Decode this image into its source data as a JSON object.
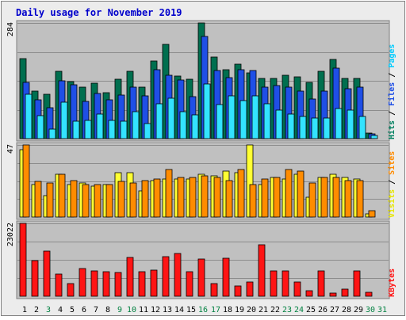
{
  "title": "Daily usage for November 2019",
  "colors": {
    "background": "#ececec",
    "panel": "#c0c0c0",
    "title": "#0000cc",
    "hits": "#006f4f",
    "files": "#1f4fe6",
    "pages": "#33e3ff",
    "visits": "#ffff33",
    "sites": "#ff8c00",
    "kbytes": "#ff1414",
    "weekend_day": "#008040",
    "weekday": "#000000"
  },
  "chart_data": [
    {
      "type": "bar",
      "max_label": "284",
      "ylim": [
        0,
        284
      ],
      "legend": [
        {
          "label": "Pages",
          "color": "#00ccff"
        },
        {
          "label": " / ",
          "color": "#000000"
        },
        {
          "label": "Files",
          "color": "#1f4fe6"
        },
        {
          "label": " / ",
          "color": "#000000"
        },
        {
          "label": "Hits",
          "color": "#008060"
        }
      ],
      "categories": [
        "1",
        "2",
        "3",
        "4",
        "5",
        "6",
        "7",
        "8",
        "9",
        "10",
        "11",
        "12",
        "13",
        "14",
        "15",
        "16",
        "17",
        "18",
        "19",
        "20",
        "21",
        "22",
        "23",
        "24",
        "25",
        "26",
        "27",
        "28",
        "29",
        "30",
        "31"
      ],
      "series": [
        {
          "name": "Hits",
          "values": [
            197,
            117,
            108,
            165,
            140,
            126,
            136,
            113,
            145,
            165,
            127,
            190,
            232,
            153,
            145,
            284,
            200,
            170,
            182,
            162,
            147,
            148,
            155,
            151,
            139,
            166,
            194,
            147,
            147,
            14,
            0
          ]
        },
        {
          "name": "Files",
          "values": [
            139,
            95,
            76,
            142,
            133,
            91,
            110,
            95,
            107,
            127,
            106,
            169,
            155,
            144,
            104,
            250,
            168,
            150,
            169,
            167,
            127,
            130,
            126,
            116,
            97,
            117,
            174,
            123,
            127,
            11,
            0
          ]
        },
        {
          "name": "Pages",
          "values": [
            109,
            56,
            23,
            90,
            42,
            45,
            61,
            45,
            42,
            66,
            36,
            86,
            100,
            67,
            58,
            135,
            84,
            105,
            93,
            105,
            85,
            70,
            60,
            55,
            50,
            50,
            73,
            70,
            55,
            8,
            0
          ]
        }
      ]
    },
    {
      "type": "bar",
      "max_label": "47",
      "ylim": [
        0,
        47
      ],
      "legend": [
        {
          "label": "Sites",
          "color": "#ff8c00"
        },
        {
          "label": " / ",
          "color": "#000000"
        },
        {
          "label": "Visits",
          "color": "#e6e600"
        }
      ],
      "categories": [
        "1",
        "2",
        "3",
        "4",
        "5",
        "6",
        "7",
        "8",
        "9",
        "10",
        "11",
        "12",
        "13",
        "14",
        "15",
        "16",
        "17",
        "18",
        "19",
        "20",
        "21",
        "22",
        "23",
        "24",
        "25",
        "26",
        "27",
        "28",
        "29",
        "30",
        "31"
      ],
      "series": [
        {
          "name": "Visits",
          "values": [
            44,
            21,
            14,
            28,
            21,
            22,
            20,
            21,
            29,
            29,
            17,
            24,
            25,
            25,
            25,
            28,
            27,
            30,
            29,
            47,
            21,
            26,
            25,
            28,
            13,
            26,
            28,
            26,
            25,
            2,
            0
          ]
        },
        {
          "name": "Sites",
          "values": [
            47,
            23,
            22,
            28,
            24,
            21,
            21,
            21,
            23,
            22,
            24,
            25,
            31,
            26,
            26,
            27,
            26,
            24,
            31,
            21,
            25,
            26,
            31,
            30,
            22,
            26,
            26,
            24,
            24,
            4,
            0
          ]
        }
      ]
    },
    {
      "type": "bar",
      "max_label": "23022",
      "ylim": [
        0,
        23022
      ],
      "legend": [
        {
          "label": "KBytes",
          "color": "#ff1414"
        }
      ],
      "categories": [
        "1",
        "2",
        "3",
        "4",
        "5",
        "6",
        "7",
        "8",
        "9",
        "10",
        "11",
        "12",
        "13",
        "14",
        "15",
        "16",
        "17",
        "18",
        "19",
        "20",
        "21",
        "22",
        "23",
        "24",
        "25",
        "26",
        "27",
        "28",
        "29",
        "30",
        "31"
      ],
      "series": [
        {
          "name": "KBytes",
          "values": [
            23022,
            11200,
            14300,
            7100,
            4000,
            8700,
            7900,
            7700,
            7600,
            12300,
            7700,
            8200,
            12400,
            13600,
            7700,
            11700,
            4100,
            12100,
            3200,
            4400,
            16300,
            7900,
            8000,
            4600,
            1700,
            8000,
            1000,
            2200,
            8000,
            1300,
            0
          ]
        }
      ]
    }
  ],
  "days": [
    {
      "label": "1",
      "weekend": false
    },
    {
      "label": "2",
      "weekend": false
    },
    {
      "label": "3",
      "weekend": true
    },
    {
      "label": "4",
      "weekend": false
    },
    {
      "label": "5",
      "weekend": false
    },
    {
      "label": "6",
      "weekend": false
    },
    {
      "label": "7",
      "weekend": false
    },
    {
      "label": "8",
      "weekend": false
    },
    {
      "label": "9",
      "weekend": true
    },
    {
      "label": "10",
      "weekend": true
    },
    {
      "label": "11",
      "weekend": false
    },
    {
      "label": "12",
      "weekend": false
    },
    {
      "label": "13",
      "weekend": false
    },
    {
      "label": "14",
      "weekend": false
    },
    {
      "label": "15",
      "weekend": false
    },
    {
      "label": "16",
      "weekend": true
    },
    {
      "label": "17",
      "weekend": true
    },
    {
      "label": "18",
      "weekend": false
    },
    {
      "label": "19",
      "weekend": false
    },
    {
      "label": "20",
      "weekend": false
    },
    {
      "label": "21",
      "weekend": false
    },
    {
      "label": "22",
      "weekend": false
    },
    {
      "label": "23",
      "weekend": true
    },
    {
      "label": "24",
      "weekend": true
    },
    {
      "label": "25",
      "weekend": false
    },
    {
      "label": "26",
      "weekend": false
    },
    {
      "label": "27",
      "weekend": false
    },
    {
      "label": "28",
      "weekend": false
    },
    {
      "label": "29",
      "weekend": false
    },
    {
      "label": "30",
      "weekend": true
    },
    {
      "label": "31",
      "weekend": true
    }
  ]
}
